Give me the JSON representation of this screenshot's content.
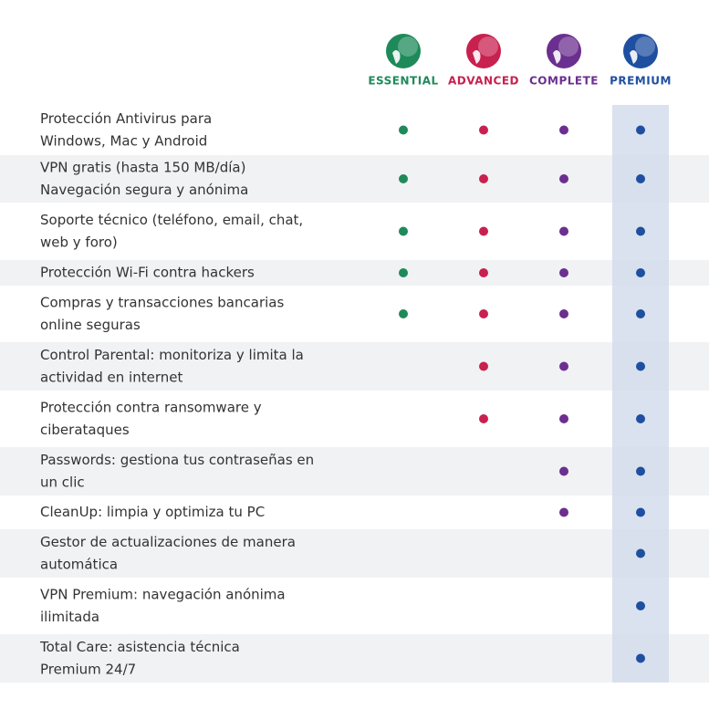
{
  "plans": [
    {
      "name": "ESSENTIAL",
      "color": "#1e8a5a"
    },
    {
      "name": "ADVANCED",
      "color": "#c8204f"
    },
    {
      "name": "COMPLETE",
      "color": "#6b2f8f"
    },
    {
      "name": "PREMIUM",
      "color": "#1f4fa0"
    }
  ],
  "features": [
    {
      "lines": [
        "Protección Antivirus para",
        "Windows, Mac y Android"
      ],
      "included": [
        true,
        true,
        true,
        true
      ]
    },
    {
      "lines": [
        "VPN gratis (hasta 150 MB/día)",
        "Navegación segura y anónima"
      ],
      "included": [
        true,
        true,
        true,
        true
      ]
    },
    {
      "lines": [
        "Soporte técnico (teléfono, email, chat,",
        "web y foro)"
      ],
      "included": [
        true,
        true,
        true,
        true
      ]
    },
    {
      "lines": [
        "Protección Wi-Fi contra hackers"
      ],
      "included": [
        true,
        true,
        true,
        true
      ]
    },
    {
      "lines": [
        "Compras y transacciones bancarias",
        "online seguras"
      ],
      "included": [
        true,
        true,
        true,
        true
      ]
    },
    {
      "lines": [
        "Control Parental: monitoriza y limita la",
        "actividad en internet"
      ],
      "included": [
        false,
        true,
        true,
        true
      ]
    },
    {
      "lines": [
        "Protección contra ransomware y",
        "ciberataques"
      ],
      "included": [
        false,
        true,
        true,
        true
      ]
    },
    {
      "lines": [
        "Passwords: gestiona tus contraseñas en",
        "un clic"
      ],
      "included": [
        false,
        false,
        true,
        true
      ]
    },
    {
      "lines": [
        "CleanUp: limpia y optimiza tu PC"
      ],
      "included": [
        false,
        false,
        true,
        true
      ]
    },
    {
      "lines": [
        "Gestor de actualizaciones de manera",
        "automática"
      ],
      "included": [
        false,
        false,
        false,
        true
      ]
    },
    {
      "lines": [
        "VPN Premium: navegación anónima",
        "ilimitada"
      ],
      "included": [
        false,
        false,
        false,
        true
      ]
    },
    {
      "lines": [
        "Total Care: asistencia técnica",
        "Premium 24/7"
      ],
      "included": [
        false,
        false,
        false,
        true
      ]
    }
  ]
}
